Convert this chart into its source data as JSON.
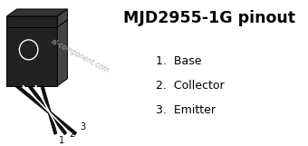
{
  "bg_color": "#ffffff",
  "title": "MJD2955-1G pinout",
  "title_fontsize": 12.5,
  "title_bold": true,
  "pins": [
    {
      "num": "1",
      "name": "Base"
    },
    {
      "num": "2",
      "name": "Collector"
    },
    {
      "num": "3",
      "name": "Emitter"
    }
  ],
  "pin_fontsize": 9,
  "watermark": "el-component.com",
  "watermark_color": "#aaaaaa",
  "body_color": "#222222",
  "edge_color": "#000000",
  "lead_color": "#111111",
  "side_color": "#444444",
  "tab_color": "#333333",
  "white": "#ffffff",
  "light_gray": "#cccccc"
}
